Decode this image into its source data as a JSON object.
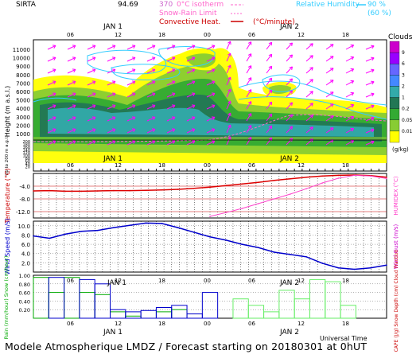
{
  "header": {
    "station": "SIRTA",
    "station_value": "94.69",
    "overlap_code": "370",
    "legend_isotherm": "0°C isotherm",
    "legend_snow_rain": "Snow-Rain Limit",
    "legend_convective": "Convective Heat.",
    "legend_convective_unit": "(°C/minute)",
    "legend_rh": "Relative Humidity",
    "rh_90": "90 %",
    "rh_60": "(60 %)",
    "colors": {
      "isotherm": "#ff66cc",
      "snow_rain": "#ff66cc",
      "convective": "#cc0000",
      "rh": "#33ccff"
    }
  },
  "footer": {
    "title": "Modele Atmospherique LMDZ / Forecast starting on 20180301 at 0hUT",
    "x_axis_label": "Universal Time"
  },
  "time_axis": {
    "hour_ticks": [
      "06",
      "12",
      "18",
      "00",
      "06",
      "12",
      "18"
    ],
    "day_labels": [
      "JAN 1",
      "JAN 2"
    ]
  },
  "chart_data": [
    {
      "type": "heatmap",
      "ylabel": "Height (m a.s.l.)",
      "ylabel_lower": "Up to 200 m a.g.l.",
      "y_ticks_upper": [
        "11000",
        "10000",
        "9000",
        "8000",
        "7000",
        "6000",
        "5000",
        "4000",
        "3000",
        "2000",
        "1000"
      ],
      "y_ticks_lower": [
        "200",
        "180",
        "160",
        "140",
        "120",
        "100",
        "80",
        "60",
        "40",
        "20"
      ],
      "colorbar": {
        "title": "Clouds",
        "unit": "(g/kg)",
        "levels": [
          "9",
          "6",
          "3",
          "2",
          "1",
          "0.2",
          "0.05",
          "0.01"
        ],
        "colors": [
          "#cc00cc",
          "#9900ff",
          "#6666ff",
          "#4488ff",
          "#33aaaa",
          "#227755",
          "#33aa33",
          "#88cc33",
          "#ffff00"
        ]
      }
    },
    {
      "type": "line",
      "ylabel": "Temperature (°C)",
      "ylabel_right": "HUMIDEX (°C)",
      "y_ticks": [
        "-4.0",
        "-8.0",
        "-12.0"
      ],
      "ylim": [
        -14,
        0
      ],
      "series": [
        {
          "name": "Temperature",
          "color": "#dd0000",
          "values": [
            -5.5,
            -5.4,
            -5.6,
            -5.6,
            -5.5,
            -5.4,
            -5.4,
            -5.3,
            -5.2,
            -5.0,
            -4.7,
            -4.3,
            -3.8,
            -3.3,
            -2.8,
            -2.2,
            -1.7,
            -1.2,
            -0.8,
            -0.6,
            -0.5,
            -0.7,
            -1.2
          ]
        },
        {
          "name": "HUMIDEX",
          "color": "#ff44cc",
          "values": [
            null,
            null,
            null,
            null,
            null,
            null,
            null,
            null,
            null,
            null,
            null,
            -13.5,
            -12.3,
            -11.0,
            -9.5,
            -8.0,
            -6.5,
            -4.8,
            -3.0,
            -1.5,
            -0.6,
            -0.8,
            -1.6
          ]
        }
      ]
    },
    {
      "type": "line",
      "ylabel": "Wind Speed (m/s)",
      "ylabel_right": "Wind Gust (m/s)",
      "y_ticks": [
        "10.0",
        "8.0",
        "6.0",
        "4.0",
        "2.0"
      ],
      "ylim": [
        0,
        11
      ],
      "series": [
        {
          "name": "Wind Speed",
          "color": "#0000cc",
          "values": [
            7.8,
            7.3,
            8.2,
            8.8,
            9.0,
            9.6,
            10.1,
            10.6,
            10.5,
            9.6,
            8.6,
            7.6,
            6.9,
            6.0,
            5.3,
            4.3,
            3.8,
            3.3,
            1.9,
            0.9,
            0.6,
            0.9,
            1.5
          ]
        }
      ]
    },
    {
      "type": "bar",
      "ylabel": "Rain (mm/hour) Snow (cm/hour)",
      "ylabel_right": "CAPE (J/g) Snow Depth (cm) Cloud Fraction",
      "y_ticks": [
        "1.00",
        "0.80",
        "0.60",
        "0.40",
        "0.20"
      ],
      "ylim": [
        0,
        1.0
      ],
      "series": [
        {
          "name": "Rain",
          "color": "#00aa00",
          "values": [
            0.95,
            0.6,
            0.95,
            0.6,
            0.55,
            0.15,
            0.05,
            0.0,
            0.15,
            0.2,
            0.0,
            0.0,
            0.0,
            0.0,
            0.0,
            0.0,
            0.0,
            0.0,
            0.0,
            0.0,
            0.0,
            0.0,
            0.0
          ]
        },
        {
          "name": "Snow",
          "color": "#0000cc",
          "values": [
            0.0,
            0.95,
            0.0,
            0.9,
            0.8,
            0.2,
            0.15,
            0.18,
            0.25,
            0.3,
            0.1,
            0.6,
            0.0,
            0.0,
            0.0,
            0.0,
            0.0,
            0.0,
            0.0,
            0.0,
            0.0,
            0.0,
            0.0
          ]
        },
        {
          "name": "Cloud Fraction",
          "color": "#66ee66",
          "values": [
            0.0,
            0.0,
            0.0,
            0.0,
            0.0,
            0.0,
            0.0,
            0.0,
            0.0,
            0.0,
            0.0,
            0.0,
            0.0,
            0.45,
            0.3,
            0.15,
            0.65,
            0.45,
            0.9,
            0.85,
            0.3,
            0.0,
            0.0
          ]
        }
      ]
    }
  ]
}
